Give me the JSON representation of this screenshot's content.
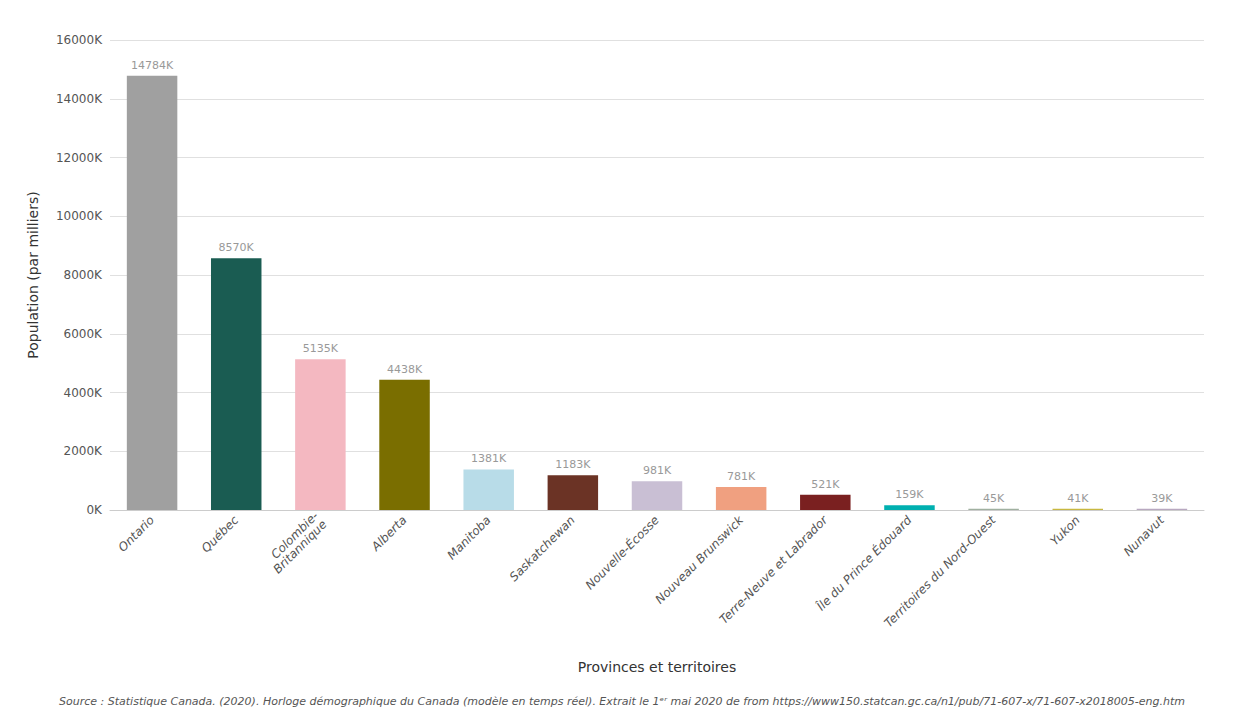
{
  "chart_data": {
    "type": "bar",
    "categories": [
      "Ontario",
      "Québec",
      "Colombie-\nBritannique",
      "Alberta",
      "Manitoba",
      "Saskatchewan",
      "Nouvelle-Écosse",
      "Nouveau Brunswick",
      "Terre-Neuve et Labrador",
      "Île du Prince Édouard",
      "Territoires du Nord-Ouest",
      "Yukon",
      "Nunavut"
    ],
    "values": [
      14784,
      8570,
      5135,
      4438,
      1381,
      1183,
      981,
      781,
      521,
      159,
      45,
      41,
      39
    ],
    "value_labels": [
      "14784K",
      "8570K",
      "5135K",
      "4438K",
      "1381K",
      "1183K",
      "981K",
      "781K",
      "521K",
      "159K",
      "45K",
      "41K",
      "39K"
    ],
    "data_labels": true,
    "colors": [
      "#a0a0a0",
      "#1a5c52",
      "#f4b8c1",
      "#7a6e00",
      "#b8dce8",
      "#6b3325",
      "#c9bfd4",
      "#f0a080",
      "#7a2020",
      "#00b0b0",
      "#a0b0a0",
      "#c8b840",
      "#b8a8c0"
    ],
    "xlabel": "Provinces et territoires",
    "ylabel": "Population (par milliers)",
    "ylim": [
      0,
      16000
    ],
    "yticks": [
      {
        "value": 0,
        "label": "0K"
      },
      {
        "value": 2000,
        "label": "2000K"
      },
      {
        "value": 4000,
        "label": "4000K"
      },
      {
        "value": 6000,
        "label": "6000K"
      },
      {
        "value": 8000,
        "label": "8000K"
      },
      {
        "value": 10000,
        "label": "10000K"
      },
      {
        "value": 12000,
        "label": "12000K"
      },
      {
        "value": 14000,
        "label": "14000K"
      },
      {
        "value": 16000,
        "label": "16000K"
      }
    ],
    "grid": true,
    "annotation": "Source : Statistique Canada. (2020). Horloge démographique du Canada (modèle en temps réel). Extrait le 1ᵉʳ mai 2020 de from https://www150.statcan.gc.ca/n1/pub/71-607-x/71-607-x2018005-eng.htm"
  }
}
